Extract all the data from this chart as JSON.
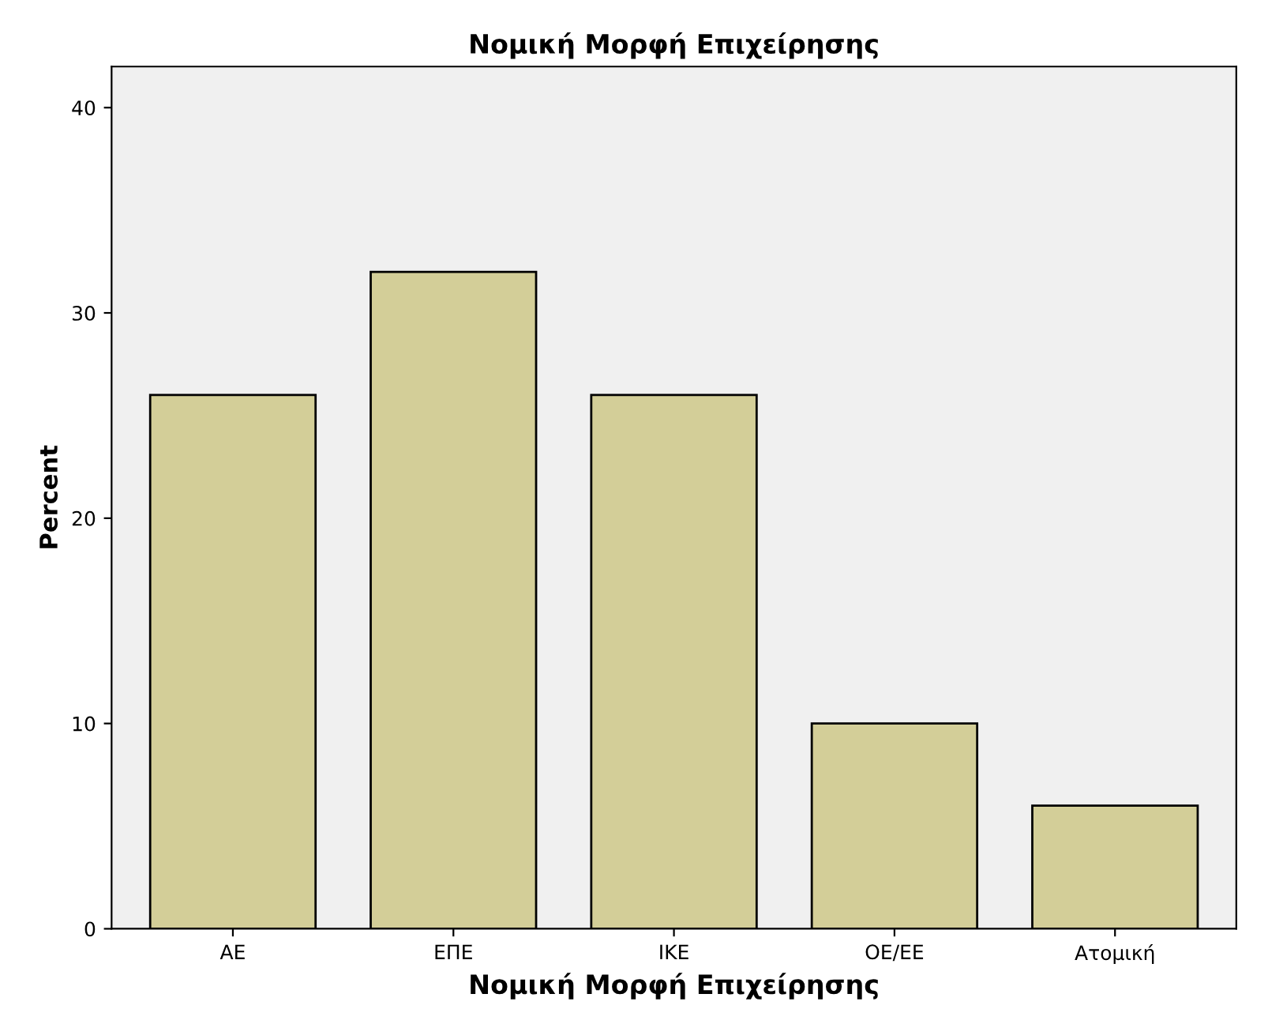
{
  "chart_data": {
    "type": "bar",
    "title": "Νομική Μορφή Επιχείρησης",
    "xlabel": "Νομική Μορφή Επιχείρησης",
    "ylabel": "Percent",
    "categories": [
      "ΑΕ",
      "ΕΠΕ",
      "ΙΚΕ",
      "ΟΕ/ΕΕ",
      "Ατομική"
    ],
    "values": [
      26,
      32,
      26,
      10,
      6
    ],
    "color": "#d3ce98",
    "ylim": [
      0,
      42
    ],
    "yticks": [
      0,
      10,
      20,
      30,
      40
    ],
    "grid": false,
    "legend": false
  }
}
